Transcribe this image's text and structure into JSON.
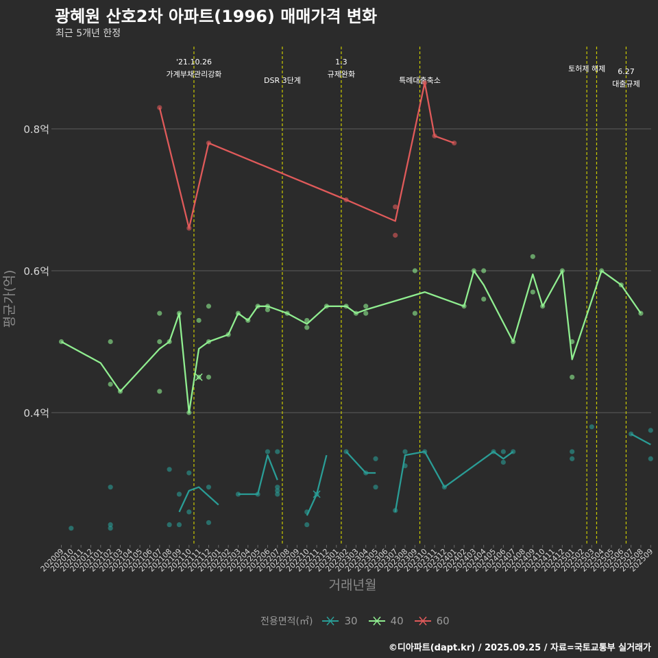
{
  "title": "광혜원 산호2차 아파트(1996) 매매가격 변화",
  "subtitle": "최근 5개년 한정",
  "caption": "©디아파트(dapt.kr) / 2025.09.25 / 자료=국토교통부 실거래가",
  "legend_title": "전용면적(㎡)",
  "colors": {
    "s30": "#2a9d96",
    "s40": "#90ee90",
    "s60": "#e05a5a",
    "event": "#cccc00",
    "grid": "#5e5e5e"
  },
  "chart_data": {
    "type": "line",
    "title": "광혜원 산호2차 아파트(1996) 매매가격 변화",
    "xlabel": "거래년월",
    "ylabel": "평균가(억)",
    "ylim": [
      0.22,
      0.93
    ],
    "y_ticks": [
      0.4,
      0.6,
      0.8
    ],
    "y_tick_labels": [
      "0.4억",
      "0.6억",
      "0.8억"
    ],
    "x_ticks": [
      "202009",
      "202010",
      "202011",
      "202012",
      "202101",
      "202102",
      "202103",
      "202104",
      "202105",
      "202106",
      "202107",
      "202108",
      "202109",
      "202110",
      "202111",
      "202112",
      "202201",
      "202202",
      "202203",
      "202204",
      "202205",
      "202206",
      "202207",
      "202208",
      "202209",
      "202210",
      "202211",
      "202212",
      "202301",
      "202302",
      "202303",
      "202304",
      "202305",
      "202306",
      "202307",
      "202308",
      "202309",
      "202310",
      "202311",
      "202312",
      "202401",
      "202402",
      "202403",
      "202404",
      "202405",
      "202406",
      "202407",
      "202408",
      "202409",
      "202410",
      "202411",
      "202412",
      "202501",
      "202502",
      "202503",
      "202504",
      "202505",
      "202506",
      "202507",
      "202508",
      "202509"
    ],
    "events": [
      {
        "x": 13.5,
        "label1": "'21.10.26",
        "label2": "가계부채관리강화",
        "level": 0
      },
      {
        "x": 22.5,
        "label1": "",
        "label2": "DSR 3단계",
        "level": 1
      },
      {
        "x": 28.5,
        "label1": "1.3",
        "label2": "규제완화",
        "level": 0
      },
      {
        "x": 36.5,
        "label1": "",
        "label2": "특례대출축소",
        "level": 1
      },
      {
        "x": 53.5,
        "label1": "",
        "label2": "토허제 해제",
        "level": 0
      },
      {
        "x": 54.5,
        "label1": "",
        "label2": "",
        "level": 0
      },
      {
        "x": 57.5,
        "label1": "6.27",
        "label2": "대출규제",
        "level": 2
      }
    ],
    "series": [
      {
        "name": "30",
        "segments": [
          [
            [
              12,
              0.26
            ],
            [
              13,
              0.29
            ],
            [
              14,
              0.295
            ],
            [
              16,
              0.27
            ]
          ],
          [
            [
              18,
              0.285
            ],
            [
              20,
              0.285
            ],
            [
              21,
              0.34
            ],
            [
              22,
              0.305
            ]
          ],
          [
            [
              25,
              0.255
            ],
            [
              26,
              0.285
            ],
            [
              27,
              0.34
            ]
          ],
          [
            [
              29,
              0.345
            ],
            [
              31,
              0.315
            ],
            [
              32,
              0.315
            ]
          ],
          [
            [
              34,
              0.26
            ],
            [
              35,
              0.34
            ],
            [
              37,
              0.345
            ],
            [
              39,
              0.295
            ],
            [
              44,
              0.345
            ],
            [
              45,
              0.335
            ],
            [
              46,
              0.345
            ]
          ],
          [
            [
              58,
              0.37
            ],
            [
              60,
              0.355
            ]
          ]
        ],
        "points": [
          [
            1,
            0.237
          ],
          [
            5,
            0.237
          ],
          [
            5,
            0.242
          ],
          [
            5,
            0.295
          ],
          [
            11,
            0.32
          ],
          [
            11,
            0.242
          ],
          [
            12,
            0.242
          ],
          [
            12,
            0.285
          ],
          [
            13,
            0.315
          ],
          [
            13,
            0.26
          ],
          [
            15,
            0.295
          ],
          [
            15,
            0.245
          ],
          [
            18,
            0.285
          ],
          [
            20,
            0.285
          ],
          [
            21,
            0.345
          ],
          [
            22,
            0.345
          ],
          [
            22,
            0.295
          ],
          [
            22,
            0.29
          ],
          [
            22,
            0.285
          ],
          [
            25,
            0.26
          ],
          [
            25,
            0.242
          ],
          [
            26,
            0.285
          ],
          [
            29,
            0.345
          ],
          [
            31,
            0.315
          ],
          [
            32,
            0.335
          ],
          [
            32,
            0.295
          ],
          [
            35,
            0.345
          ],
          [
            35,
            0.325
          ],
          [
            34,
            0.262
          ],
          [
            37,
            0.345
          ],
          [
            39,
            0.295
          ],
          [
            44,
            0.345
          ],
          [
            45,
            0.33
          ],
          [
            45,
            0.345
          ],
          [
            46,
            0.345
          ],
          [
            52,
            0.345
          ],
          [
            52,
            0.335
          ],
          [
            54,
            0.38
          ],
          [
            58,
            0.37
          ],
          [
            60,
            0.375
          ],
          [
            60,
            0.335
          ]
        ]
      },
      {
        "name": "40",
        "segments": [
          [
            [
              0,
              0.5
            ],
            [
              4,
              0.47
            ],
            [
              6,
              0.43
            ],
            [
              10,
              0.49
            ],
            [
              11,
              0.5
            ],
            [
              12,
              0.54
            ],
            [
              13,
              0.4
            ],
            [
              14,
              0.49
            ],
            [
              15,
              0.5
            ],
            [
              17,
              0.51
            ],
            [
              18,
              0.54
            ],
            [
              19,
              0.53
            ],
            [
              20,
              0.55
            ],
            [
              21,
              0.55
            ],
            [
              23,
              0.54
            ],
            [
              25,
              0.525
            ],
            [
              27,
              0.55
            ],
            [
              29,
              0.55
            ],
            [
              30,
              0.54
            ],
            [
              31,
              0.545
            ],
            [
              37,
              0.57
            ],
            [
              41,
              0.55
            ],
            [
              42,
              0.6
            ],
            [
              43,
              0.58
            ],
            [
              46,
              0.5
            ],
            [
              48,
              0.595
            ],
            [
              49,
              0.55
            ],
            [
              51,
              0.6
            ],
            [
              52,
              0.475
            ],
            [
              55,
              0.6
            ],
            [
              57,
              0.58
            ],
            [
              59,
              0.54
            ]
          ]
        ],
        "points": [
          [
            0,
            0.5
          ],
          [
            5,
            0.5
          ],
          [
            5,
            0.44
          ],
          [
            6,
            0.43
          ],
          [
            10,
            0.54
          ],
          [
            10,
            0.5
          ],
          [
            10,
            0.43
          ],
          [
            11,
            0.5
          ],
          [
            12,
            0.54
          ],
          [
            13,
            0.4
          ],
          [
            14,
            0.53
          ],
          [
            14,
            0.45
          ],
          [
            15,
            0.55
          ],
          [
            15,
            0.5
          ],
          [
            15,
            0.45
          ],
          [
            17,
            0.51
          ],
          [
            18,
            0.54
          ],
          [
            19,
            0.53
          ],
          [
            20,
            0.55
          ],
          [
            21,
            0.55
          ],
          [
            21,
            0.545
          ],
          [
            23,
            0.54
          ],
          [
            25,
            0.53
          ],
          [
            25,
            0.52
          ],
          [
            27,
            0.55
          ],
          [
            29,
            0.55
          ],
          [
            30,
            0.54
          ],
          [
            31,
            0.55
          ],
          [
            31,
            0.54
          ],
          [
            36,
            0.6
          ],
          [
            36,
            0.54
          ],
          [
            41,
            0.55
          ],
          [
            42,
            0.6
          ],
          [
            43,
            0.6
          ],
          [
            43,
            0.56
          ],
          [
            46,
            0.5
          ],
          [
            48,
            0.62
          ],
          [
            48,
            0.57
          ],
          [
            49,
            0.55
          ],
          [
            51,
            0.6
          ],
          [
            52,
            0.5
          ],
          [
            52,
            0.45
          ],
          [
            55,
            0.6
          ],
          [
            57,
            0.58
          ],
          [
            59,
            0.54
          ]
        ]
      },
      {
        "name": "60",
        "segments": [
          [
            [
              10,
              0.83
            ],
            [
              13,
              0.66
            ],
            [
              15,
              0.78
            ],
            [
              29,
              0.7
            ],
            [
              34,
              0.67
            ],
            [
              37,
              0.865
            ],
            [
              38,
              0.79
            ],
            [
              40,
              0.78
            ]
          ]
        ],
        "points": [
          [
            10,
            0.83
          ],
          [
            13,
            0.66
          ],
          [
            15,
            0.78
          ],
          [
            29,
            0.7
          ],
          [
            34,
            0.69
          ],
          [
            34,
            0.65
          ],
          [
            37,
            0.865
          ],
          [
            38,
            0.79
          ],
          [
            40,
            0.78
          ]
        ]
      }
    ],
    "markers": [
      {
        "series": "40",
        "x": 14,
        "y": 0.45
      },
      {
        "series": "30",
        "x": 26,
        "y": 0.285
      }
    ]
  }
}
